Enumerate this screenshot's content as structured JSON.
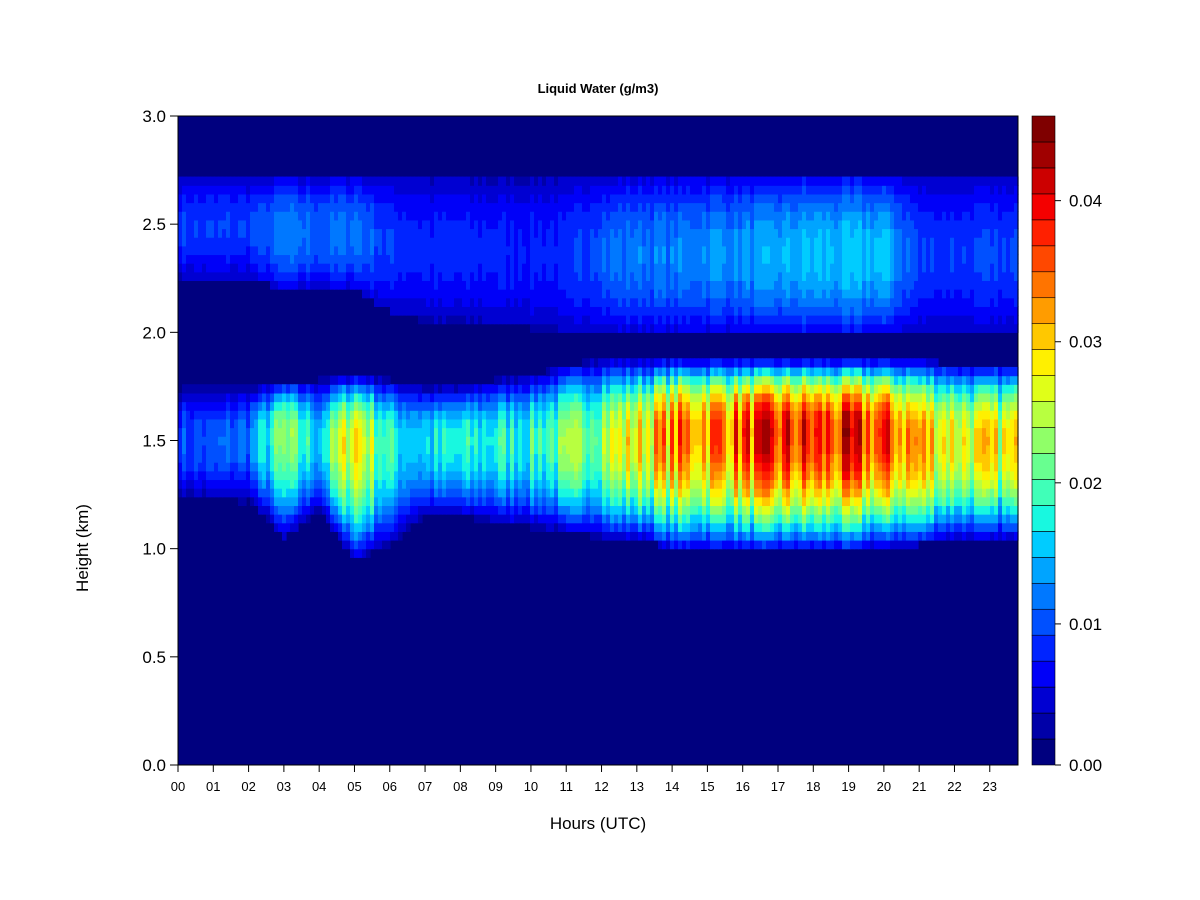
{
  "chart_data": {
    "type": "heatmap",
    "title": "Liquid Water (g/m3)",
    "xlabel": "Hours (UTC)",
    "ylabel": "Height (km)",
    "xlim": [
      0,
      23.8
    ],
    "ylim": [
      0.0,
      3.0
    ],
    "x_ticks": [
      "00",
      "01",
      "02",
      "03",
      "04",
      "05",
      "06",
      "07",
      "08",
      "09",
      "10",
      "11",
      "12",
      "13",
      "14",
      "15",
      "16",
      "17",
      "18",
      "19",
      "20",
      "21",
      "22",
      "23"
    ],
    "y_ticks": [
      "0.0",
      "0.5",
      "1.0",
      "1.5",
      "2.0",
      "2.5",
      "3.0"
    ],
    "colorbar": {
      "range": [
        0.0,
        0.046
      ],
      "ticks": [
        "0.00",
        "0.01",
        "0.02",
        "0.03",
        "0.04"
      ],
      "tick_values": [
        0.0,
        0.01,
        0.02,
        0.03,
        0.04
      ],
      "colors": [
        "#00007f",
        "#0000a8",
        "#0000d2",
        "#0000f8",
        "#0024ff",
        "#0050ff",
        "#0078ff",
        "#00a4ff",
        "#00ccff",
        "#18f8e0",
        "#40ffb8",
        "#68ff90",
        "#90ff68",
        "#b8ff40",
        "#e0ff18",
        "#fff000",
        "#ffc800",
        "#ff9c00",
        "#ff7400",
        "#ff4800",
        "#ff2000",
        "#f40000",
        "#cc0000",
        "#a00000",
        "#7f0000"
      ]
    },
    "cloud_layer": {
      "hours": [
        0,
        1,
        2,
        3,
        4,
        5,
        6,
        7,
        8,
        9,
        10,
        11,
        12,
        13,
        14,
        15,
        16,
        17,
        18,
        19,
        20,
        21,
        22,
        23
      ],
      "base_km": [
        1.22,
        1.22,
        1.22,
        1.05,
        1.18,
        0.95,
        1.02,
        1.15,
        1.15,
        1.12,
        1.1,
        1.08,
        1.05,
        1.05,
        1.0,
        1.0,
        1.0,
        1.0,
        1.0,
        1.0,
        1.02,
        1.02,
        1.05,
        1.05
      ],
      "top_km": [
        1.75,
        1.75,
        1.75,
        1.78,
        1.78,
        1.8,
        1.78,
        1.75,
        1.75,
        1.78,
        1.8,
        1.85,
        1.87,
        1.87,
        1.87,
        1.87,
        1.87,
        1.87,
        1.87,
        1.87,
        1.87,
        1.87,
        1.85,
        1.85
      ],
      "peak_km": [
        1.5,
        1.5,
        1.5,
        1.55,
        1.5,
        1.5,
        1.5,
        1.5,
        1.5,
        1.5,
        1.5,
        1.5,
        1.5,
        1.5,
        1.55,
        1.55,
        1.55,
        1.55,
        1.55,
        1.55,
        1.55,
        1.5,
        1.5,
        1.5
      ],
      "peak_lwc": [
        0.01,
        0.01,
        0.012,
        0.022,
        0.016,
        0.03,
        0.018,
        0.016,
        0.017,
        0.018,
        0.019,
        0.021,
        0.025,
        0.028,
        0.033,
        0.034,
        0.036,
        0.037,
        0.037,
        0.037,
        0.036,
        0.032,
        0.028,
        0.027
      ]
    },
    "upper_layer": {
      "hours": [
        0,
        1,
        2,
        3,
        4,
        5,
        6,
        7,
        8,
        9,
        10,
        11,
        12,
        13,
        14,
        15,
        16,
        17,
        18,
        19,
        20,
        21,
        22,
        23
      ],
      "base_km": [
        2.25,
        2.25,
        2.25,
        2.2,
        2.2,
        2.2,
        2.1,
        2.05,
        2.05,
        2.03,
        2.02,
        2.0,
        2.0,
        2.0,
        2.0,
        2.0,
        2.0,
        2.0,
        2.0,
        2.0,
        2.0,
        2.0,
        2.0,
        2.0
      ],
      "top_km": [
        2.72,
        2.72,
        2.72,
        2.72,
        2.72,
        2.72,
        2.72,
        2.72,
        2.72,
        2.72,
        2.72,
        2.72,
        2.72,
        2.72,
        2.72,
        2.72,
        2.72,
        2.72,
        2.72,
        2.72,
        2.72,
        2.72,
        2.72,
        2.72
      ],
      "lwc": [
        0.009,
        0.009,
        0.009,
        0.012,
        0.011,
        0.012,
        0.009,
        0.008,
        0.008,
        0.008,
        0.008,
        0.008,
        0.011,
        0.012,
        0.012,
        0.013,
        0.013,
        0.014,
        0.015,
        0.015,
        0.015,
        0.009,
        0.009,
        0.009
      ]
    }
  }
}
